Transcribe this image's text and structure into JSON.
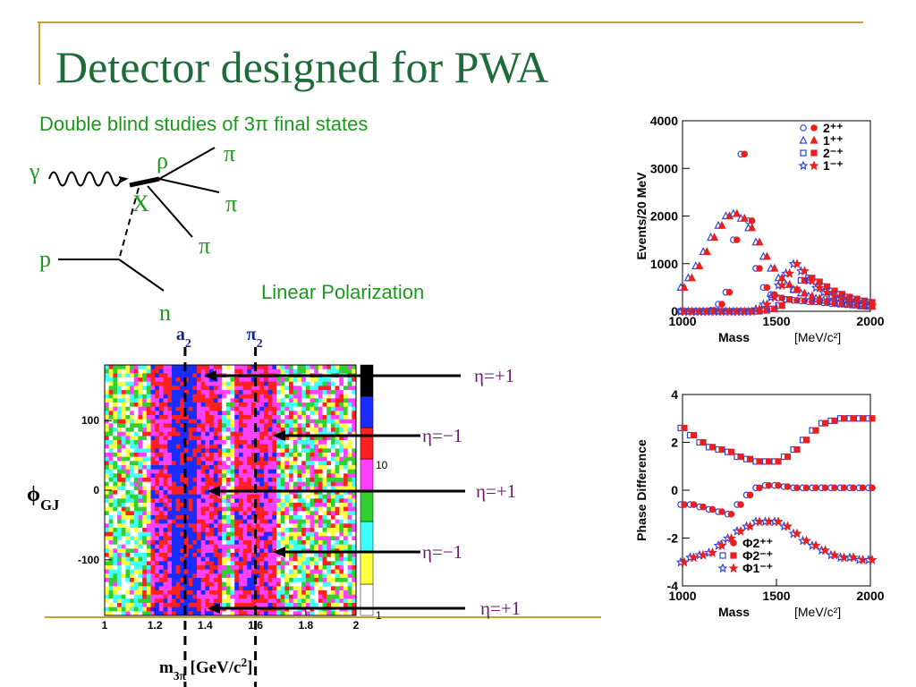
{
  "title": "Detector designed for PWA",
  "subtitle": "Double blind studies of 3π final states",
  "diagram": {
    "gamma": "γ",
    "rho": "ρ",
    "x": "X",
    "p": "p",
    "n": "n",
    "pion": "π"
  },
  "polarization": "Linear Polarization",
  "chart_data": [
    {
      "type": "heatmap",
      "xlim": [
        1,
        2
      ],
      "xticks": [
        1,
        1.2,
        1.4,
        1.6,
        1.8,
        2
      ],
      "ylim": [
        -180,
        180
      ],
      "yticks": [
        -100,
        0,
        100
      ],
      "x_label": [
        "m",
        "3π",
        " [GeV/c",
        "2",
        "]"
      ],
      "y_label": [
        "ϕ",
        "GJ"
      ],
      "colorbar": [
        "#ffffff",
        "#ffff40",
        "#40ffff",
        "#30d030",
        "#ff40ff",
        "#ff2020",
        "#1a2cff",
        "#000000"
      ],
      "colorbar_ticks": [
        "10",
        "1"
      ],
      "markers": [
        {
          "label": [
            "a",
            "2"
          ],
          "x": 1.32
        },
        {
          "label": [
            "π",
            "2"
          ],
          "x": 1.6
        }
      ],
      "annotations": [
        "η=+1",
        "η=−1",
        "η=+1",
        "η=−1",
        "η=+1"
      ]
    },
    {
      "type": "scatter",
      "x": [
        1000,
        1040,
        1080,
        1120,
        1160,
        1200,
        1240,
        1280,
        1320,
        1360,
        1400,
        1440,
        1480,
        1520,
        1560,
        1600,
        1640,
        1680,
        1720,
        1760,
        1800,
        1840,
        1880,
        1920,
        1960,
        2000
      ],
      "xlim": [
        1000,
        2000
      ],
      "xticks": [
        1000,
        1500,
        2000
      ],
      "ylim": [
        0,
        4000
      ],
      "yticks": [
        0,
        1000,
        2000,
        3000,
        4000
      ],
      "x_label": "Mass",
      "x_unit": "[MeV/c²]",
      "y_label": "Events/20 MeV",
      "legend": "upper right",
      "colors": [
        "#2a44e0",
        "#e82020"
      ],
      "series": [
        {
          "name": "2⁺⁺",
          "marker": "circle",
          "values": [
            0,
            0,
            0,
            0,
            20,
            150,
            400,
            1500,
            3300,
            1900,
            900,
            500,
            350,
            280,
            250,
            230,
            220,
            200,
            200,
            180,
            160,
            150,
            140,
            130,
            120,
            110
          ]
        },
        {
          "name": "1⁺⁺",
          "marker": "triangle",
          "values": [
            500,
            700,
            950,
            1250,
            1550,
            1800,
            2000,
            2050,
            1950,
            1750,
            1450,
            1150,
            900,
            700,
            560,
            460,
            380,
            320,
            270,
            230,
            200,
            170,
            150,
            130,
            110,
            100
          ]
        },
        {
          "name": "2⁻⁺",
          "marker": "square",
          "values": [
            0,
            0,
            0,
            0,
            0,
            0,
            0,
            0,
            0,
            0,
            0,
            20,
            50,
            120,
            250,
            450,
            650,
            700,
            620,
            520,
            430,
            360,
            300,
            260,
            220,
            190
          ]
        },
        {
          "name": "1⁻⁺",
          "marker": "star",
          "values": [
            0,
            0,
            0,
            0,
            0,
            0,
            0,
            0,
            0,
            0,
            50,
            150,
            300,
            550,
            800,
            1000,
            850,
            650,
            500,
            400,
            320,
            260,
            220,
            180,
            150,
            130
          ]
        }
      ]
    },
    {
      "type": "scatter",
      "x": [
        1000,
        1050,
        1100,
        1150,
        1200,
        1250,
        1300,
        1350,
        1400,
        1450,
        1500,
        1550,
        1600,
        1650,
        1700,
        1750,
        1800,
        1850,
        1900,
        1950,
        2000
      ],
      "xlim": [
        1000,
        2000
      ],
      "xticks": [
        1000,
        1500,
        2000
      ],
      "ylim": [
        -4,
        4
      ],
      "yticks": [
        -4,
        -2,
        0,
        2,
        4
      ],
      "x_label": "Mass",
      "x_unit": "[MeV/c²]",
      "y_label": "Phase Difference",
      "legend": "lower left",
      "colors": [
        "#2a44e0",
        "#e82020"
      ],
      "series": [
        {
          "name": "Φ2⁺⁺",
          "marker": "circle",
          "values": [
            -0.6,
            -0.6,
            -0.7,
            -0.8,
            -0.9,
            -1.0,
            -0.6,
            -0.2,
            0.1,
            0.2,
            0.2,
            0.15,
            0.1,
            0.1,
            0.1,
            0.1,
            0.1,
            0.1,
            0.1,
            0.1,
            0.1
          ]
        },
        {
          "name": "Φ2⁻⁺",
          "marker": "square",
          "values": [
            2.6,
            2.3,
            2.0,
            1.8,
            1.7,
            1.6,
            1.4,
            1.3,
            1.2,
            1.2,
            1.2,
            1.4,
            1.7,
            2.1,
            2.5,
            2.8,
            2.9,
            3.0,
            3.0,
            3.0,
            3.0
          ]
        },
        {
          "name": "Φ1⁻⁺",
          "marker": "star",
          "values": [
            -3.0,
            -2.8,
            -2.7,
            -2.6,
            -2.3,
            -2.0,
            -1.7,
            -1.5,
            -1.3,
            -1.3,
            -1.3,
            -1.5,
            -1.8,
            -2.1,
            -2.3,
            -2.5,
            -2.7,
            -2.8,
            -2.8,
            -2.9,
            -2.9
          ]
        }
      ]
    }
  ]
}
